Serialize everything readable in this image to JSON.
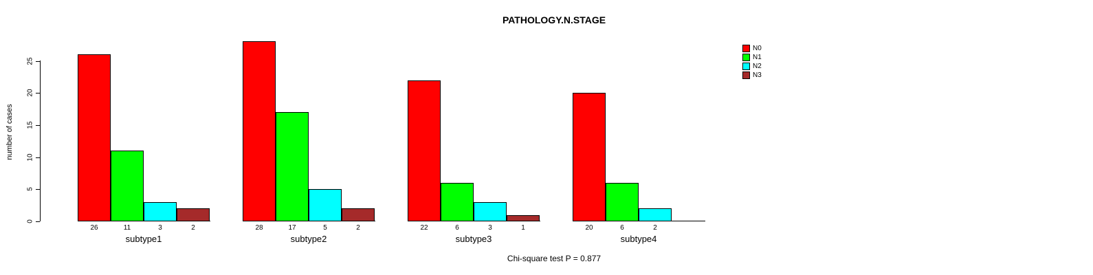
{
  "title": "PATHOLOGY.N.STAGE",
  "footer": "Chi-square test P = 0.877",
  "chart_data": {
    "type": "bar",
    "grouped": true,
    "title": "PATHOLOGY.N.STAGE",
    "subtitle": "Chi-square test P = 0.877",
    "xlabel": "",
    "ylabel": "number of cases",
    "categories": [
      "subtype1",
      "subtype2",
      "subtype3",
      "subtype4"
    ],
    "series": [
      {
        "name": "N0",
        "color": "#FF0000",
        "values": [
          26,
          28,
          22,
          20
        ]
      },
      {
        "name": "N1",
        "color": "#00FF00",
        "values": [
          11,
          17,
          6,
          6
        ]
      },
      {
        "name": "N2",
        "color": "#00FFFF",
        "values": [
          3,
          5,
          3,
          2
        ]
      },
      {
        "name": "N3",
        "color": "#A52A2A",
        "values": [
          2,
          2,
          1,
          0
        ]
      }
    ],
    "bar_value_labels": [
      [
        "26",
        "11",
        "3",
        "2"
      ],
      [
        "28",
        "17",
        "5",
        "2"
      ],
      [
        "22",
        "6",
        "3",
        "1"
      ],
      [
        "20",
        "6",
        "2",
        ""
      ]
    ],
    "yticks": [
      0,
      5,
      10,
      15,
      20,
      25
    ],
    "ylim": [
      0,
      28
    ],
    "grid": false,
    "legend_position": "top-right",
    "legend_entries": [
      "N0",
      "N1",
      "N2",
      "N3"
    ],
    "zero_value_bars_hidden": true
  },
  "colors": {
    "background": "#FFFFFF",
    "axis": "#000000",
    "text": "#000000",
    "n0": "#FF0000",
    "n1": "#00FF00",
    "n2": "#00FFFF",
    "n3": "#A52A2A"
  }
}
